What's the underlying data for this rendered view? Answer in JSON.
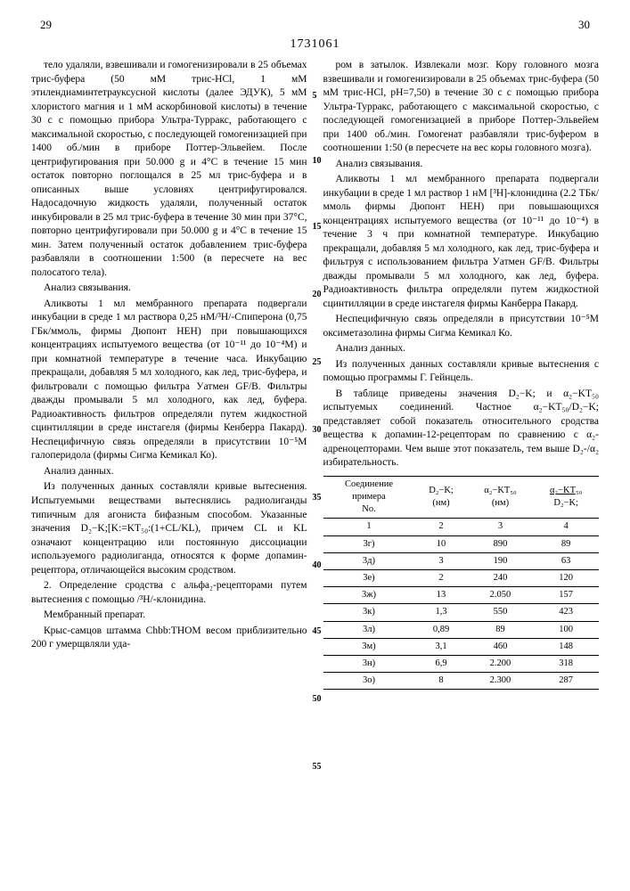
{
  "header": {
    "page_left": "29",
    "page_right": "30",
    "patent_number": "1731061"
  },
  "line_numbers": [
    "5",
    "10",
    "15",
    "20",
    "25",
    "30",
    "35",
    "40",
    "45",
    "50",
    "55"
  ],
  "left_col": {
    "p1": "тело удаляли, взвешивали и гомогенизировали в 25 объемах трис-буфера (50 мМ трис-HCl, 1 мМ этилендиаминтетрауксусной кислоты (далее ЭДУК), 5 мМ хлористого магния и 1 мМ аскорбиновой кислоты) в течение 30 с с помощью прибора Ультра-Турракс, работающего с максимальной скоростью, с последующей гомогенизацией при 1400 об./мин в приборе Поттер-Эльвейем. После центрифугирования при 50.000 g и 4°C в течение 15 мин остаток повторно поглощался в 25 мл трис-буфера и в описанных выше условиях центрифугировался. Надосадочную жидкость удаляли, полученный остаток инкубировали в 25 мл трис-буфера в течение 30 мин при 37°С, повторно центрифугировали при 50.000 g и 4°С в течение 15 мин. Затем полученный остаток добавлением трис-буфера разбавляли в соотношении 1:500 (в пересчете на вес полосатого тела).",
    "p2": "Анализ связывания.",
    "p3": "Аликвоты 1 мл мембранного препарата подвергали инкубации в среде 1 мл раствора 0,25 нМ/³H/-Спиперона (0,75 ГБк/ммоль, фирмы Дюпонт НЕН) при повышающихся концентрациях испытуемого вещества (от 10⁻¹¹ до 10⁻⁴М) и при комнатной температуре в течение часа. Инкубацию прекращали, добавляя 5 мл холодного, как лед, трис-буфера, и фильтровали с помощью фильтра Уатмен GF/B. Фильтры дважды промывали 5 мл холодного, как лед, буфера. Радиоактивность фильтров определяли путем жидкостной сцинтилляции в среде инстагеля (фирмы Кенберра Пакард). Неспецифичную связь определяли в присутствии 10⁻⁵М галоперидола (фирмы Сигма Кемикал Ко).",
    "p4": "Анализ данных.",
    "p5": "Из полученных данных составляли кривые вытеснения. Испытуемыми веществами вытеснялись радиолиганды типичным для агониста бифазным способом. Указанные значения D₂−K;[K:=KT₅₀:(1+CL/KL), причем CL и KL означают концентрацию или постоянную диссоциации используемого радиолиганда, относятся к форме допамин-рецептора, отличающейся высоким сродством.",
    "p6": "2. Определение сродства с альфа₂-рецепторами путем вытеснения с помощью /³H/-клонидина.",
    "p7": "Мембранный препарат.",
    "p8": "Крыс-самцов штамма Chbb:THOM весом приблизительно 200 г умерщвляли уда-"
  },
  "right_col": {
    "p1": "ром в затылок. Извлекали мозг. Кору головного мозга взвешивали и гомогенизировали в 25 объемах трис-буфера (50 мМ трис-HCl, pH=7,50) в течение 30 с с помощью прибора Ультра-Турракс, работающего с максимальной скоростью, с последующей гомогенизацией в приборе Поттер-Эльвейем при 1400 об./мин. Гомогенат разбавляли трис-буфером в соотношении 1:50 (в пересчете на вес коры головного мозга).",
    "p2": "Анализ связывания.",
    "p3": "Аликвоты 1 мл мембранного препарата подвергали инкубации в среде 1 мл раствор 1 нМ [³H]-клонидина (2.2 ТБк/ммоль фирмы Дюпонт НЕН) при повышающихся концентрациях испытуемого вещества (от 10⁻¹¹ до 10⁻⁴) в течение 3 ч при комнатной температуре. Инкубацию прекращали, добавляя 5 мл холодного, как лед, трис-буфера и фильтруя с использованием фильтра Уатмен GF/B. Фильтры дважды промывали 5 мл холодного, как лед, буфера. Радиоактивность фильтра определяли путем жидкостной сцинтилляции в среде инстагеля фирмы Канберра Пакард.",
    "p4": "Неспецифичную связь определяли в присутствии 10⁻⁵М оксиметазолина фирмы Сигма Кемикал Ко.",
    "p5": "Анализ данных.",
    "p6": "Из полученных данных составляли кривые вытеснения с помощью программы Г. Гейнцель.",
    "p7": "В таблице приведены значения D₂−K; и α₂−KT₅₀ испытуемых соединений. Частное α₂−KT₅₀/D₂−K; представляет собой показатель относительного сродства вещества к допамин-12-рецепторам по сравнению с α₂-адреноцепторами. Чем выше этот показатель, тем выше D₂-/α₂ избирательность."
  },
  "table": {
    "headers": {
      "c1_l1": "Соединение",
      "c1_l2": "примера",
      "c1_l3": "No.",
      "c2_l1": "D₂−K;",
      "c2_l2": "(нм)",
      "c3_l1": "α₂−KT₅₀",
      "c3_l2": "(нм)",
      "c4_l1": "α₂−KT₅₀",
      "c4_l2": "D₂−K;"
    },
    "colnums": [
      "1",
      "2",
      "3",
      "4"
    ],
    "rows": [
      {
        "ex": "3г)",
        "d2": "10",
        "a2": "890",
        "ratio": "89"
      },
      {
        "ex": "3д)",
        "d2": "3",
        "a2": "190",
        "ratio": "63"
      },
      {
        "ex": "3е)",
        "d2": "2",
        "a2": "240",
        "ratio": "120"
      },
      {
        "ex": "3ж)",
        "d2": "13",
        "a2": "2.050",
        "ratio": "157"
      },
      {
        "ex": "3к)",
        "d2": "1,3",
        "a2": "550",
        "ratio": "423"
      },
      {
        "ex": "3л)",
        "d2": "0,89",
        "a2": "89",
        "ratio": "100"
      },
      {
        "ex": "3м)",
        "d2": "3,1",
        "a2": "460",
        "ratio": "148"
      },
      {
        "ex": "3н)",
        "d2": "6,9",
        "a2": "2.200",
        "ratio": "318"
      },
      {
        "ex": "3о)",
        "d2": "8",
        "a2": "2.300",
        "ratio": "287"
      }
    ]
  }
}
